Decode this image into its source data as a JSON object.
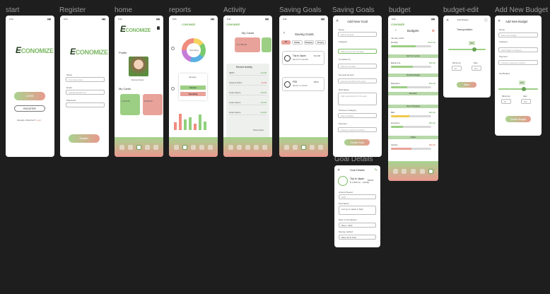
{
  "frames": {
    "start": "start",
    "register": "Register",
    "home": "home",
    "reports": "reports",
    "activity": "Activity",
    "saving_goals": "Saving Goals",
    "saving_goals_2": "Saving Goals",
    "budget": "budget",
    "budget_edit": "budget-edit",
    "add_new_budget": "Add New Budget",
    "goal_details": "Goal Details"
  },
  "brand": {
    "logo_text": "CONOMIZE",
    "logo_initial": "E",
    "small_logo": "CONOMIZE"
  },
  "start": {
    "login": "LOGIN",
    "register": "REGISTER",
    "already": "Already a Member?",
    "login_link": "Login"
  },
  "register": {
    "name_label": "Name",
    "name_ph": "Your name here",
    "email_label": "Email",
    "email_ph": "user@example.com",
    "password_label": "Password",
    "register_btn": "Register"
  },
  "home": {
    "profile": "Profile",
    "user": "Emma Doyle",
    "my_cards": "My Cards",
    "card1_amount": "$ 456.00",
    "card2_amount": "$ 289.00"
  },
  "reports": {
    "center": "Spending",
    "january": "January",
    "income": "Income",
    "spending": "Spending"
  },
  "activity": {
    "my_cards": "My Cards",
    "card_amount": "$ 2,456.00",
    "recent": "Recent Activity",
    "items": [
      {
        "title": "SETO",
        "sub": "Lorem Ipsum · Occasional",
        "amt": "+ $1.90"
      },
      {
        "title": "Amazon Prime",
        "sub": "Lorem Ipsum · Occasional",
        "amt": "- $1.99"
      },
      {
        "title": "Lorem Ipsum",
        "sub": "Lorem Ipsum · Occasional",
        "amt": "+ $2.00"
      },
      {
        "title": "Lorem Ipsum",
        "sub": "Lorem Ipsum · Occasional",
        "amt": "+ $1.90"
      },
      {
        "title": "Lorem Ipsum",
        "sub": "Lorem Ipsum · Occasional",
        "amt": "+ $1.90"
      }
    ],
    "show_more": "Show More"
  },
  "saving": {
    "title": "Saving Goals",
    "tabs": [
      "All",
      "Holiday",
      "Shopping",
      "Property"
    ],
    "goals": [
      {
        "name": "Trip to Japan",
        "sub": "Set for 3 months",
        "amt": "$3,000"
      },
      {
        "name": "PS5",
        "sub": "Set for 1 month",
        "amt": "$600"
      }
    ]
  },
  "add_goal": {
    "title": "Add New Goal",
    "name_label": "Name",
    "name_ph": "Name the goal",
    "category_label": "Category",
    "category_ph": "Select an icon for the goal",
    "by_label": "Complete by",
    "by_ph": "Pick an end date",
    "amount_label": "Set goal amount",
    "amount_ph": "Amount needed for the goal",
    "desc_label": "Description",
    "desc_ph": "Add a description for the goal",
    "cat2_label": "Choose a category",
    "cat2_ph": "Select Holiday",
    "payment_label": "Payment",
    "payment_ph": "Choose a payment method",
    "create_btn": "Create Goal"
  },
  "goal_details": {
    "title": "Goal Details",
    "name": "Trip to Japan",
    "sub": "$ 1,000/mo · Holiday",
    "amount": "$3000",
    "amount_needed_label": "Amount Saved",
    "amount_needed": "$100",
    "desc_label": "Description",
    "desc": "Let's go to Japan in May!",
    "date_label": "Date of Completion",
    "date": "May 1, 2022",
    "payment_label": "Saving method",
    "payment": "Bank direct debit"
  },
  "budget": {
    "title": "Budgets",
    "month": "January 2022",
    "overall": "Overall Budget",
    "sections": [
      "Eat Out / Leisure",
      "Shopping Budget",
      "Education",
      "Rent & Shopping",
      "Utilities"
    ],
    "rows": [
      {
        "name": "Monthly",
        "amt": "$700 left",
        "progress": 0.62
      },
      {
        "name": "Eating Out",
        "amt": "$40 left",
        "progress": 0.55
      },
      {
        "name": "Education",
        "amt": "$40 left",
        "progress": 0.4
      },
      {
        "name": "Bills",
        "amt": "$40 left",
        "progress": 0.45
      },
      {
        "name": "Groceries",
        "amt": "$40 left",
        "progress": 0.3
      },
      {
        "name": "Clothes",
        "amt": "$40 left",
        "progress": 0.5
      },
      {
        "name": "Hobbies",
        "amt": "$700 left",
        "progress": 0.7
      }
    ]
  },
  "budget_edit": {
    "title": "Edit Budget",
    "category": "Transportation",
    "value": "$50",
    "min_label": "Minimum",
    "min": "$5",
    "max_label": "Max",
    "max": "$90",
    "save": "Save"
  },
  "add_budget": {
    "title": "Add New Budget",
    "name_label": "Name",
    "name_ph": "Name the budget",
    "cat_label": "Category",
    "cat_ph": "Add budget to category",
    "payment_label": "Payment",
    "payment_ph": "Choose a payment method",
    "set_label": "Set Budget",
    "value": "$50",
    "min_label": "Minimum",
    "min": "$5",
    "max_label": "Max",
    "max": "$90",
    "create": "Create Budget"
  }
}
